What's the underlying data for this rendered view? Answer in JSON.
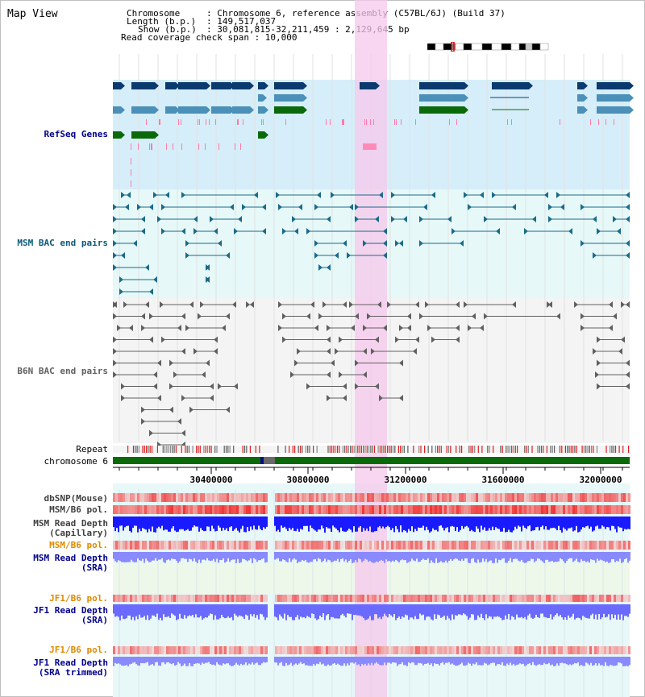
{
  "page_title": "Map View",
  "info": {
    "chromosome_key": "Chromosome",
    "chromosome_val": ": Chromosome 6, reference assembly (C57BL/6J) (Build 37)",
    "length_key": "Length (b.p.)",
    "length_val": ": 149,517,037",
    "show_key": "Show (b.p.)",
    "show_val": ": 30,081,815-32,211,459 : 2,129,645 bp",
    "coverage_line": "Read coverage check span : 10,000"
  },
  "tracks": {
    "refseq": "RefSeq Genes",
    "msm_bac": "MSM BAC end pairs",
    "b6n_bac": "B6N BAC end pairs",
    "repeat": "Repeat",
    "chromosome": "chromosome 6",
    "dbsnp": "dbSNP(Mouse)",
    "msm_b6_pol_1": "MSM/B6 pol.",
    "msm_depth_cap_1": "MSM Read Depth",
    "msm_depth_cap_2": "(Capillary)",
    "msm_b6_pol_2": "MSM/B6 pol.",
    "msm_depth_sra_1": "MSM Read Depth",
    "msm_depth_sra_2": "(SRA)",
    "jf1_pol_1": "JF1/B6 pol.",
    "jf1_depth_sra_1": "JF1 Read Depth",
    "jf1_depth_sra_2": "(SRA)",
    "jf1_pol_2": "JF1/B6 pol.",
    "jf1_depth_trim_1": "JF1 Read Depth",
    "jf1_depth_trim_2": "(SRA trimmed)"
  },
  "axis": {
    "ticks": [
      "30400000",
      "30800000",
      "31200000",
      "31600000",
      "32000000"
    ]
  },
  "colors": {
    "refseq_bg": "#d6eef9",
    "msm_bg": "#e6f8f8",
    "b6n_bg": "#f4f4f4",
    "highlight": "#f6c8ec",
    "dark_blue": "#0a3a6e",
    "mid_blue": "#4a90b8",
    "green": "#0a6a0a",
    "bac_teal": "#1a6a8a",
    "bac_grey": "#606060",
    "pol_red": "#f03030",
    "depth_blue": "#1a1aff",
    "depth_light": "#8a8aff",
    "label_navy": "#00008b",
    "label_teal": "#0a5a7a",
    "label_orange": "#e08a00"
  }
}
